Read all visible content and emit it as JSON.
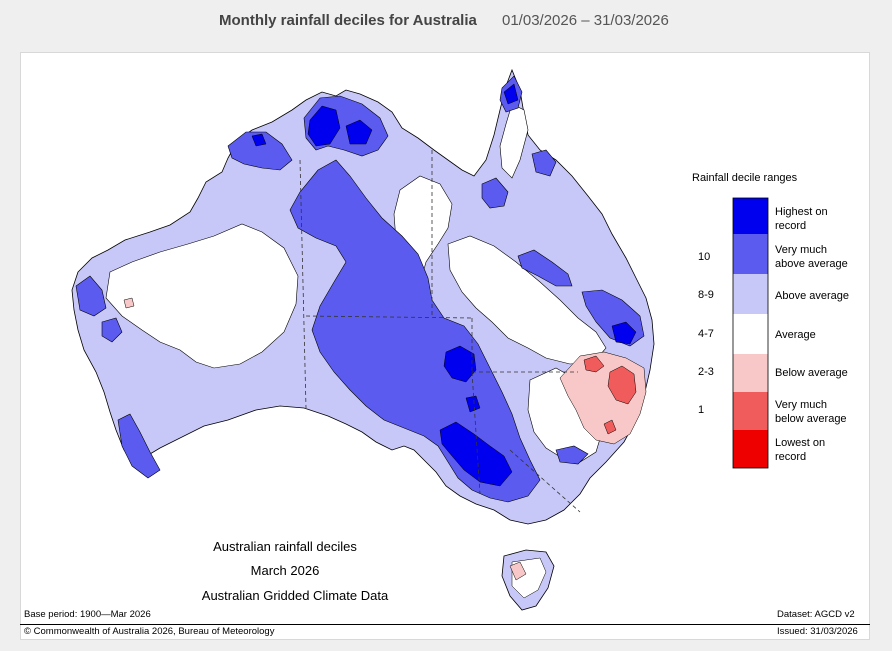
{
  "header": {
    "title": "Monthly rainfall deciles for Australia",
    "date_range": "01/03/2026 – 31/03/2026"
  },
  "map": {
    "caption_line1": "Australian rainfall deciles",
    "caption_line2": "March 2026",
    "caption_line3": "Australian Gridded Climate Data",
    "base_period": "Base period: 1900—Mar 2026",
    "dataset": "Dataset: AGCD v2",
    "copyright": "© Commonwealth of Australia 2026, Bureau of Meteorology",
    "issued": "Issued: 31/03/2026"
  },
  "legend": {
    "title": "Rainfall decile ranges",
    "items": [
      {
        "label_line1": "Highest on",
        "label_line2": "record",
        "range": "",
        "color": "#0000ee"
      },
      {
        "label_line1": "Very much",
        "label_line2": "above average",
        "range": "10",
        "color": "#5b5bf0"
      },
      {
        "label_line1": "Above average",
        "label_line2": "",
        "range": "8-9",
        "color": "#c8c8f8"
      },
      {
        "label_line1": "Average",
        "label_line2": "",
        "range": "4-7",
        "color": "#ffffff"
      },
      {
        "label_line1": "Below average",
        "label_line2": "",
        "range": "2-3",
        "color": "#f8c8c8"
      },
      {
        "label_line1": "Very much",
        "label_line2": "below average",
        "range": "1",
        "color": "#f05b5b"
      },
      {
        "label_line1": "Lowest on",
        "label_line2": "record",
        "range": "",
        "color": "#ee0000"
      }
    ]
  },
  "colors": {
    "highest": "#0000ee",
    "very_much_above": "#5b5bf0",
    "above": "#c8c8f8",
    "average": "#ffffff",
    "below": "#f8c8c8",
    "very_much_below": "#f05b5b",
    "lowest": "#ee0000"
  }
}
